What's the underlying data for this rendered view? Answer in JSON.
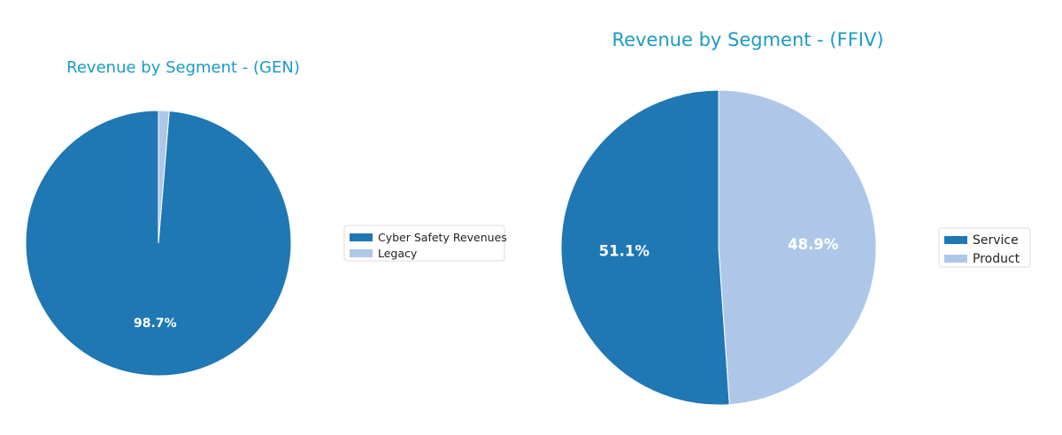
{
  "chart_data": [
    {
      "type": "pie",
      "title": "Revenue by Segment - (GEN)",
      "categories": [
        "Cyber Safety Revenues",
        "Legacy"
      ],
      "values": [
        98.7,
        1.3
      ],
      "labels": [
        "98.7%",
        ""
      ],
      "colors": [
        "#1f77b4",
        "#aec7e8"
      ],
      "start_angle": 90,
      "direction": "counterclockwise",
      "legend": "right"
    },
    {
      "type": "pie",
      "title": "Revenue by Segment - (FFIV)",
      "categories": [
        "Service",
        "Product"
      ],
      "values": [
        51.1,
        48.9
      ],
      "labels": [
        "51.1%",
        "48.9%"
      ],
      "colors": [
        "#1f77b4",
        "#aec7e8"
      ],
      "start_angle": 90,
      "direction": "counterclockwise",
      "legend": "right"
    }
  ],
  "title_color": "#1a9bc4"
}
